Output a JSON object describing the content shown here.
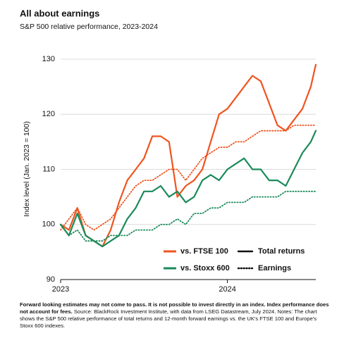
{
  "chart_data": {
    "type": "line",
    "title": "All about earnings",
    "subtitle": "S&P 500 relative performance, 2023-2024",
    "y_label": "Index level (Jan. 2023 = 100)",
    "note_bold": "Forward looking estimates may not come to pass. It is not possible to invest directly in an index. Index performance does not account for fees.",
    "note": "Source: BlackRock Investment Institute, with data from LSEG Datastream, July 2024. Notes: The chart shows the S&P 500 relative performance of total returns and 12-month forward earnings vs. the UK's FTSE 100 and Europe's Stoxx 600 indexes.",
    "x": [
      2023.0,
      2023.05,
      2023.1,
      2023.15,
      2023.2,
      2023.25,
      2023.3,
      2023.35,
      2023.4,
      2023.45,
      2023.5,
      2023.55,
      2023.6,
      2023.65,
      2023.7,
      2023.75,
      2023.8,
      2023.85,
      2023.9,
      2023.95,
      2024.0,
      2024.05,
      2024.1,
      2024.15,
      2024.2,
      2024.25,
      2024.3,
      2024.35,
      2024.4,
      2024.45,
      2024.5,
      2024.53
    ],
    "xlim": [
      2023.0,
      2024.53
    ],
    "xticks": [
      2023,
      2024
    ],
    "ylim": [
      90,
      130
    ],
    "yticks": [
      90,
      100,
      110,
      120,
      130
    ],
    "grid": true,
    "series": [
      {
        "comparison": "vs. FTSE 100",
        "measure": "Total returns",
        "color": "#f0541e",
        "dash": "solid",
        "values": [
          100,
          99,
          103,
          98,
          97,
          96,
          99,
          104,
          108,
          110,
          112,
          116,
          116,
          115,
          105,
          107,
          108,
          110,
          115,
          120,
          121,
          123,
          125,
          127,
          126,
          122,
          118,
          117,
          119,
          121,
          125,
          129
        ]
      },
      {
        "comparison": "vs. FTSE 100",
        "measure": "Earnings",
        "color": "#f0541e",
        "dash": "dotted",
        "values": [
          99,
          101,
          103,
          100,
          99,
          100,
          101,
          103,
          105,
          107,
          108,
          108,
          109,
          110,
          110,
          108,
          110,
          112,
          113,
          114,
          114,
          115,
          115,
          116,
          117,
          117,
          117,
          117,
          118,
          118,
          118,
          118
        ]
      },
      {
        "comparison": "vs. Stoxx 600",
        "measure": "Total returns",
        "color": "#1a8a5a",
        "dash": "solid",
        "values": [
          100,
          98,
          102,
          98,
          97,
          96,
          97,
          98,
          101,
          103,
          106,
          106,
          107,
          105,
          106,
          104,
          105,
          108,
          109,
          108,
          110,
          111,
          112,
          110,
          110,
          108,
          108,
          107,
          110,
          113,
          115,
          117
        ]
      },
      {
        "comparison": "vs. Stoxx 600",
        "measure": "Earnings",
        "color": "#1a8a5a",
        "dash": "dotted",
        "values": [
          100,
          98,
          99,
          97,
          97,
          97,
          98,
          98,
          98,
          99,
          99,
          99,
          100,
          100,
          101,
          100,
          102,
          102,
          103,
          103,
          104,
          104,
          104,
          105,
          105,
          105,
          105,
          106,
          106,
          106,
          106,
          106
        ]
      }
    ]
  }
}
